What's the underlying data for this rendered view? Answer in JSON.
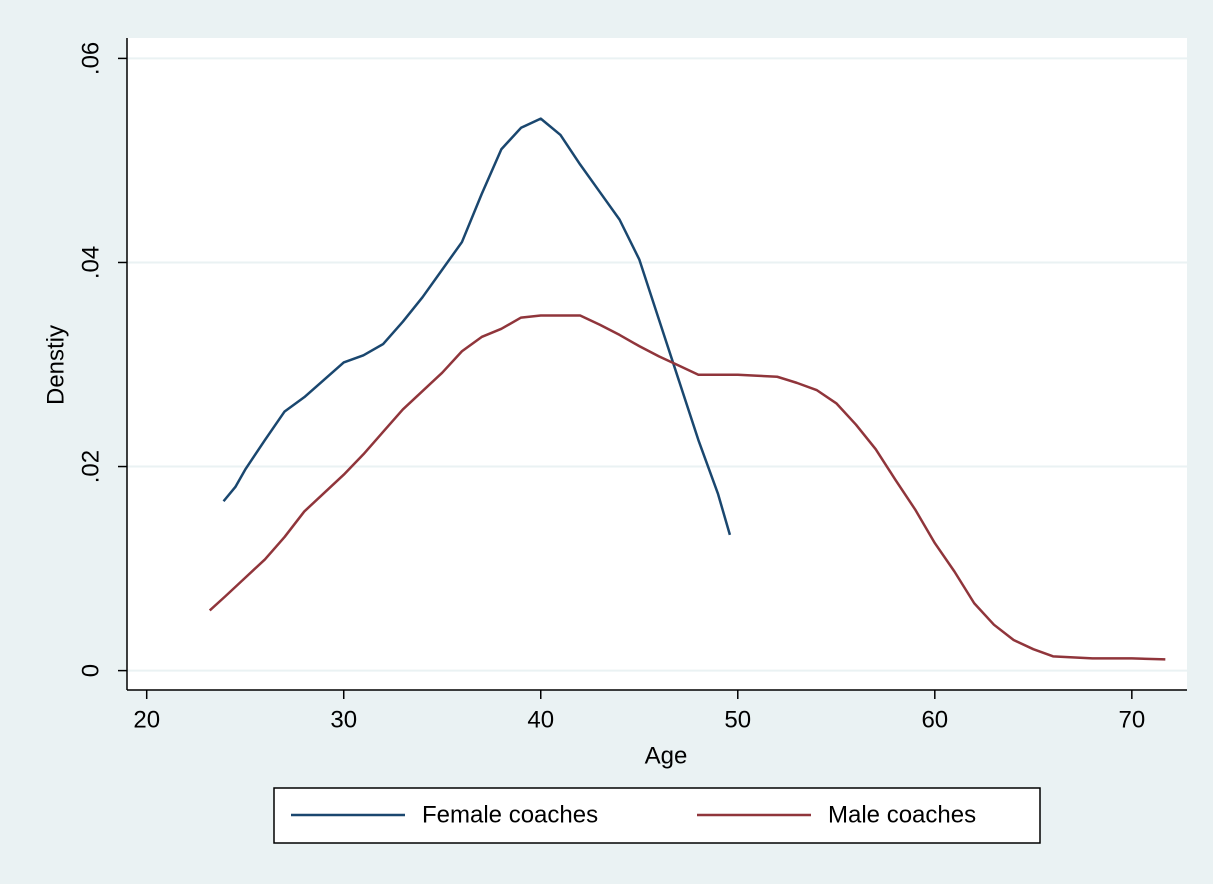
{
  "chart_data": {
    "type": "line",
    "x_label": "Age",
    "y_label": "Denstiy",
    "xlim": [
      19,
      72.8
    ],
    "ylim": [
      -0.0019,
      0.062
    ],
    "xticks": [
      20,
      30,
      40,
      50,
      60,
      70
    ],
    "yticks": [
      0,
      {
        "value": 0.02,
        "label": ".02"
      },
      {
        "value": 0.04,
        "label": ".04"
      },
      {
        "value": 0.06,
        "label": ".06"
      }
    ],
    "grid": true,
    "legend": "bottom",
    "series": [
      {
        "name": "Female coaches",
        "color": "#1a476f",
        "x": [
          23.9,
          24.5,
          25,
          26,
          27,
          28,
          29,
          30,
          31,
          32,
          33,
          34,
          35,
          36,
          37,
          38,
          39,
          40,
          41,
          42,
          43,
          44,
          45,
          46,
          47,
          48,
          49,
          49.6
        ],
        "values": [
          0.0166,
          0.018,
          0.0197,
          0.0226,
          0.0254,
          0.0268,
          0.0285,
          0.0302,
          0.0309,
          0.032,
          0.0342,
          0.0366,
          0.0393,
          0.042,
          0.0467,
          0.0511,
          0.0532,
          0.0541,
          0.0525,
          0.0496,
          0.0469,
          0.0442,
          0.0403,
          0.0344,
          0.0285,
          0.0226,
          0.0173,
          0.0133
        ]
      },
      {
        "name": "Male coaches",
        "color": "#90353b",
        "x": [
          23.2,
          24,
          25,
          26,
          27,
          28,
          29,
          30,
          31,
          32,
          33,
          34,
          35,
          36,
          37,
          38,
          39,
          40,
          41,
          42,
          43,
          44,
          45,
          46,
          47,
          48,
          49,
          50,
          51,
          52,
          53,
          54,
          55,
          56,
          57,
          58,
          59,
          60,
          61,
          62,
          63,
          64,
          65,
          66,
          67,
          68,
          69,
          70,
          71.7
        ],
        "values": [
          0.0059,
          0.0073,
          0.0091,
          0.0109,
          0.0131,
          0.0156,
          0.0174,
          0.0192,
          0.0212,
          0.0234,
          0.0256,
          0.0274,
          0.0292,
          0.0313,
          0.0327,
          0.0335,
          0.0346,
          0.0348,
          0.0348,
          0.0348,
          0.0339,
          0.0329,
          0.0318,
          0.0308,
          0.0299,
          0.029,
          0.029,
          0.029,
          0.0289,
          0.0288,
          0.0282,
          0.0275,
          0.0262,
          0.0241,
          0.0217,
          0.0187,
          0.0158,
          0.0125,
          0.0097,
          0.0066,
          0.0045,
          0.003,
          0.0021,
          0.0014,
          0.0013,
          0.0012,
          0.0012,
          0.0012,
          0.0011
        ]
      }
    ]
  }
}
